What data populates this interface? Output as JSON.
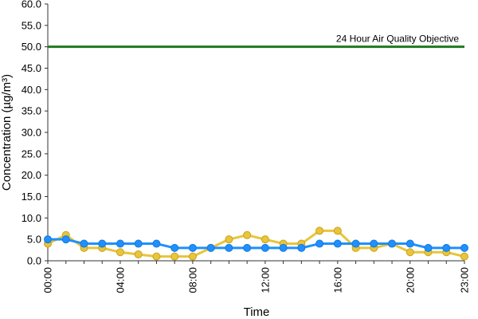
{
  "chart_data": {
    "type": "line",
    "title": "",
    "xlabel": "Time",
    "ylabel": "Concentration (µg/m³)",
    "ylim": [
      0,
      60
    ],
    "yticks": [
      "0.0",
      "5.0",
      "10.0",
      "15.0",
      "20.0",
      "25.0",
      "30.0",
      "35.0",
      "40.0",
      "45.0",
      "50.0",
      "55.0",
      "60.0"
    ],
    "x": [
      "00:00",
      "01:00",
      "02:00",
      "03:00",
      "04:00",
      "05:00",
      "06:00",
      "07:00",
      "08:00",
      "09:00",
      "10:00",
      "11:00",
      "12:00",
      "13:00",
      "14:00",
      "15:00",
      "16:00",
      "17:00",
      "18:00",
      "19:00",
      "20:00",
      "21:00",
      "22:00",
      "23:00"
    ],
    "xtick_labels": [
      "00:00",
      "04:00",
      "08:00",
      "12:00",
      "16:00",
      "20:00",
      "23:00"
    ],
    "grid": false,
    "legend": "none",
    "objective_line": {
      "value": 50,
      "label": "24 Hour Air Quality Objective",
      "color": "#1e7a1e"
    },
    "series": [
      {
        "color": "#e8c53a",
        "values": [
          4,
          6,
          3,
          3,
          2,
          1.5,
          1,
          1,
          1,
          3,
          5,
          6,
          5,
          4,
          4,
          7,
          7,
          3,
          3,
          4,
          2,
          2,
          2,
          1
        ]
      },
      {
        "color": "#1e90ff",
        "values": [
          5,
          5,
          4,
          4,
          4,
          4,
          4,
          3,
          3,
          3,
          3,
          3,
          3,
          3,
          3,
          4,
          4,
          4,
          4,
          4,
          4,
          3,
          3,
          3
        ]
      }
    ]
  }
}
